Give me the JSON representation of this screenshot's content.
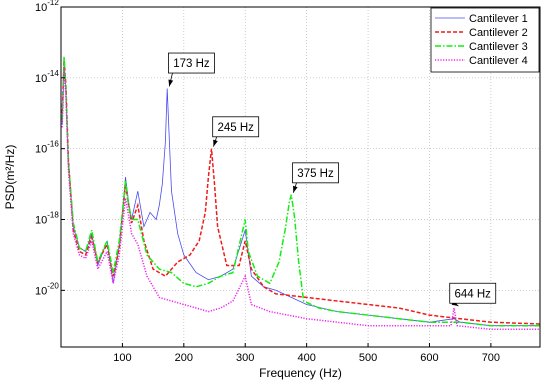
{
  "chart_data": {
    "type": "line",
    "xlabel": "Frequency (Hz)",
    "ylabel": "PSD(m²/Hz)",
    "xlim": [
      0,
      780
    ],
    "ylim_exponent": [
      -21,
      -12
    ],
    "log_y": true,
    "grid": true,
    "legend_position": "top-right",
    "x_ticks": [
      "100",
      "200",
      "300",
      "400",
      "500",
      "600",
      "700"
    ],
    "y_ticks": [
      {
        "base": "10",
        "exp": "-12"
      },
      {
        "base": "10",
        "exp": "-14"
      },
      {
        "base": "10",
        "exp": "-16"
      },
      {
        "base": "10",
        "exp": "-18"
      },
      {
        "base": "10",
        "exp": "-20"
      }
    ],
    "series": [
      {
        "name": "Cantilever 1",
        "color": "#4a4cf0",
        "style": "solid",
        "points": [
          [
            2,
            -15.3
          ],
          [
            5,
            -13.6
          ],
          [
            8,
            -14.4
          ],
          [
            12,
            -16.5
          ],
          [
            20,
            -18.2
          ],
          [
            30,
            -18.8
          ],
          [
            40,
            -18.9
          ],
          [
            50,
            -18.4
          ],
          [
            60,
            -19.3
          ],
          [
            75,
            -18.6
          ],
          [
            85,
            -19.8
          ],
          [
            95,
            -18.7
          ],
          [
            100,
            -17.8
          ],
          [
            105,
            -16.8
          ],
          [
            110,
            -17.5
          ],
          [
            115,
            -18.0
          ],
          [
            125,
            -17.2
          ],
          [
            135,
            -18.2
          ],
          [
            145,
            -17.8
          ],
          [
            155,
            -18.0
          ],
          [
            160,
            -17.6
          ],
          [
            165,
            -17.0
          ],
          [
            170,
            -15.8
          ],
          [
            173,
            -14.3
          ],
          [
            176,
            -15.6
          ],
          [
            180,
            -17.2
          ],
          [
            190,
            -18.4
          ],
          [
            200,
            -19.0
          ],
          [
            220,
            -19.5
          ],
          [
            240,
            -19.7
          ],
          [
            260,
            -19.6
          ],
          [
            280,
            -19.4
          ],
          [
            300,
            -18.3
          ],
          [
            310,
            -19.6
          ],
          [
            330,
            -19.9
          ],
          [
            350,
            -20.0
          ],
          [
            400,
            -20.4
          ],
          [
            450,
            -20.6
          ],
          [
            500,
            -20.7
          ],
          [
            550,
            -20.8
          ],
          [
            600,
            -20.9
          ],
          [
            640,
            -20.8
          ],
          [
            650,
            -20.9
          ],
          [
            700,
            -21.0
          ],
          [
            780,
            -21.0
          ]
        ]
      },
      {
        "name": "Cantilever 2",
        "color": "#ee1c1c",
        "style": "dashed",
        "points": [
          [
            2,
            -15.0
          ],
          [
            5,
            -13.5
          ],
          [
            8,
            -14.2
          ],
          [
            12,
            -16.3
          ],
          [
            20,
            -18.3
          ],
          [
            30,
            -18.9
          ],
          [
            40,
            -19.0
          ],
          [
            50,
            -18.5
          ],
          [
            60,
            -19.2
          ],
          [
            75,
            -18.7
          ],
          [
            85,
            -19.6
          ],
          [
            95,
            -18.8
          ],
          [
            100,
            -17.9
          ],
          [
            105,
            -17.0
          ],
          [
            110,
            -17.6
          ],
          [
            115,
            -18.1
          ],
          [
            125,
            -17.6
          ],
          [
            135,
            -18.6
          ],
          [
            150,
            -19.4
          ],
          [
            170,
            -19.6
          ],
          [
            190,
            -19.2
          ],
          [
            210,
            -19.0
          ],
          [
            225,
            -18.6
          ],
          [
            235,
            -17.8
          ],
          [
            240,
            -16.8
          ],
          [
            245,
            -16.0
          ],
          [
            250,
            -17.0
          ],
          [
            255,
            -18.2
          ],
          [
            270,
            -19.3
          ],
          [
            290,
            -19.3
          ],
          [
            300,
            -18.6
          ],
          [
            310,
            -19.4
          ],
          [
            330,
            -19.9
          ],
          [
            350,
            -20.1
          ],
          [
            400,
            -20.2
          ],
          [
            450,
            -20.3
          ],
          [
            500,
            -20.4
          ],
          [
            550,
            -20.5
          ],
          [
            600,
            -20.7
          ],
          [
            650,
            -20.8
          ],
          [
            700,
            -20.9
          ],
          [
            780,
            -20.95
          ]
        ]
      },
      {
        "name": "Cantilever 3",
        "color": "#11ee11",
        "style": "dashdot",
        "points": [
          [
            2,
            -15.2
          ],
          [
            5,
            -13.4
          ],
          [
            8,
            -14.3
          ],
          [
            12,
            -16.4
          ],
          [
            20,
            -18.1
          ],
          [
            30,
            -18.8
          ],
          [
            40,
            -18.9
          ],
          [
            50,
            -18.3
          ],
          [
            60,
            -19.2
          ],
          [
            75,
            -18.6
          ],
          [
            85,
            -19.5
          ],
          [
            95,
            -18.6
          ],
          [
            100,
            -17.8
          ],
          [
            105,
            -16.9
          ],
          [
            110,
            -17.6
          ],
          [
            115,
            -18.0
          ],
          [
            125,
            -18.0
          ],
          [
            140,
            -19.0
          ],
          [
            160,
            -19.4
          ],
          [
            180,
            -19.5
          ],
          [
            200,
            -19.8
          ],
          [
            220,
            -19.9
          ],
          [
            240,
            -19.8
          ],
          [
            260,
            -19.6
          ],
          [
            280,
            -19.5
          ],
          [
            300,
            -18.0
          ],
          [
            305,
            -18.9
          ],
          [
            320,
            -19.6
          ],
          [
            340,
            -19.8
          ],
          [
            355,
            -19.2
          ],
          [
            365,
            -18.3
          ],
          [
            372,
            -17.5
          ],
          [
            375,
            -17.3
          ],
          [
            380,
            -17.9
          ],
          [
            387,
            -19.2
          ],
          [
            395,
            -20.3
          ],
          [
            420,
            -20.5
          ],
          [
            450,
            -20.6
          ],
          [
            500,
            -20.7
          ],
          [
            550,
            -20.8
          ],
          [
            600,
            -20.9
          ],
          [
            650,
            -20.9
          ],
          [
            700,
            -21.0
          ],
          [
            780,
            -21.0
          ]
        ]
      },
      {
        "name": "Cantilever 4",
        "color": "#ee22ee",
        "style": "dotted",
        "points": [
          [
            2,
            -15.4
          ],
          [
            5,
            -13.7
          ],
          [
            8,
            -14.5
          ],
          [
            12,
            -16.6
          ],
          [
            20,
            -18.4
          ],
          [
            30,
            -19.0
          ],
          [
            40,
            -19.1
          ],
          [
            50,
            -18.6
          ],
          [
            60,
            -19.4
          ],
          [
            75,
            -18.9
          ],
          [
            85,
            -19.8
          ],
          [
            95,
            -19.0
          ],
          [
            100,
            -18.2
          ],
          [
            105,
            -17.4
          ],
          [
            110,
            -17.9
          ],
          [
            115,
            -18.4
          ],
          [
            125,
            -18.7
          ],
          [
            140,
            -19.6
          ],
          [
            160,
            -20.2
          ],
          [
            180,
            -20.3
          ],
          [
            200,
            -20.4
          ],
          [
            220,
            -20.5
          ],
          [
            240,
            -20.6
          ],
          [
            260,
            -20.5
          ],
          [
            280,
            -20.3
          ],
          [
            300,
            -19.6
          ],
          [
            310,
            -20.4
          ],
          [
            340,
            -20.6
          ],
          [
            370,
            -20.7
          ],
          [
            400,
            -20.8
          ],
          [
            450,
            -20.9
          ],
          [
            500,
            -21.0
          ],
          [
            550,
            -21.0
          ],
          [
            600,
            -21.0
          ],
          [
            635,
            -21.0
          ],
          [
            640,
            -20.5
          ],
          [
            645,
            -21.0
          ],
          [
            700,
            -21.1
          ],
          [
            780,
            -21.1
          ]
        ]
      }
    ],
    "annotations": [
      {
        "text": "173 Hz",
        "x": 173,
        "y": -14.3,
        "box_x": 175,
        "box_y": -13.3
      },
      {
        "text": "245 Hz",
        "x": 245,
        "y": -16.0,
        "box_x": 247,
        "box_y": -15.1
      },
      {
        "text": "375 Hz",
        "x": 375,
        "y": -17.3,
        "box_x": 377,
        "box_y": -16.4
      },
      {
        "text": "644 Hz",
        "x": 644,
        "y": -20.5,
        "box_x": 633,
        "box_y": -19.8
      }
    ]
  }
}
